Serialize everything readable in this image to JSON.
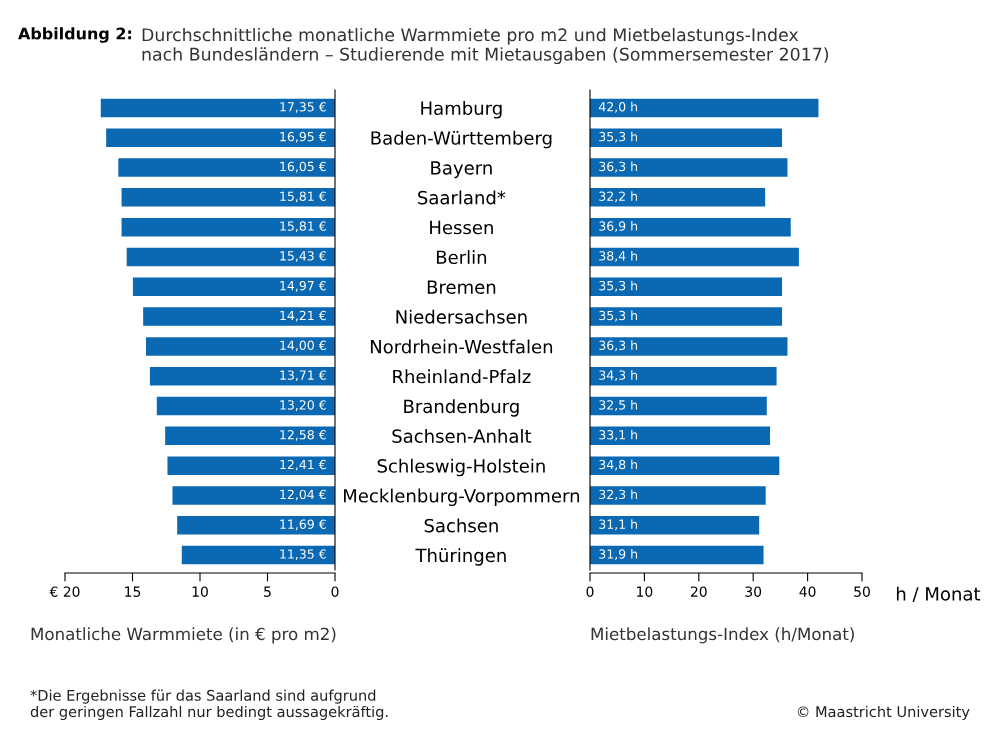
{
  "chart_data": [
    {
      "type": "bar",
      "orientation": "horizontal",
      "title": "Abbildung 2:",
      "subtitle": "Durchschnittliche monatliche Warmmiete pro m2 und Mietbelastungs-Index\nnach Bundesländern – Studierende mit Mietausgaben (Sommersemester 2017)",
      "categories": [
        "Hamburg",
        "Baden-Württemberg",
        "Bayern",
        "Saarland*",
        "Hessen",
        "Berlin",
        "Bremen",
        "Niedersachsen",
        "Nordrhein-Westfalen",
        "Rheinland-Pfalz",
        "Brandenburg",
        "Sachsen-Anhalt",
        "Schleswig-Holstein",
        "Mecklenburg-Vorpommern",
        "Sachsen",
        "Thüringen"
      ],
      "values": [
        17.35,
        16.95,
        16.05,
        15.81,
        15.81,
        15.43,
        14.97,
        14.21,
        14.0,
        13.71,
        13.2,
        12.58,
        12.41,
        12.04,
        11.69,
        11.35
      ],
      "value_labels": [
        "17,35 €",
        "16,95 €",
        "16,05 €",
        "15,81 €",
        "15,81 €",
        "15,43 €",
        "14,97 €",
        "14,21 €",
        "14,00 €",
        "13,71 €",
        "13,20 €",
        "12,58 €",
        "12,41 €",
        "12,04 €",
        "11,69 €",
        "11,35 €"
      ],
      "color": "#0b68b3",
      "xlim": [
        20,
        0
      ],
      "xticks": [
        {
          "value": 20,
          "label": "€ 20"
        },
        15,
        10,
        5,
        0
      ],
      "xlabel": "Monatliche Warmmiete (in € pro m2)",
      "grid": false,
      "legend": false,
      "annotations": [
        "*Die Ergebnisse für das Saarland sind aufgrund\nder geringen Fallzahl nur bedingt aussagekräftig."
      ]
    },
    {
      "type": "bar",
      "orientation": "horizontal",
      "categories": [
        null,
        null,
        null,
        null,
        null,
        null,
        null,
        null,
        null,
        null,
        null,
        null,
        null,
        null,
        null,
        null
      ],
      "values": [
        42.0,
        35.3,
        36.3,
        32.2,
        36.9,
        38.4,
        35.3,
        35.3,
        36.3,
        34.3,
        32.5,
        33.1,
        34.8,
        32.3,
        31.1,
        31.9
      ],
      "value_labels": [
        "42,0 h",
        "35,3 h",
        "36,3 h",
        "32,2 h",
        "36,9 h",
        "38,4 h",
        "35,3 h",
        "35,3 h",
        "36,3 h",
        "34,3 h",
        "32,5 h",
        "33,1 h",
        "34,8 h",
        "32,3 h",
        "31,1 h",
        "31,9 h"
      ],
      "color": "#0b68b3",
      "xlim": [
        0,
        50
      ],
      "xticks": [
        0,
        10,
        20,
        30,
        40,
        50
      ],
      "xlabel": "Mietbelastungs-Index (h/Monat)",
      "tick_labels": "x",
      "grid": false,
      "legend": false,
      "annotations": [
        "h / Monat",
        "© Maastricht University"
      ]
    }
  ]
}
